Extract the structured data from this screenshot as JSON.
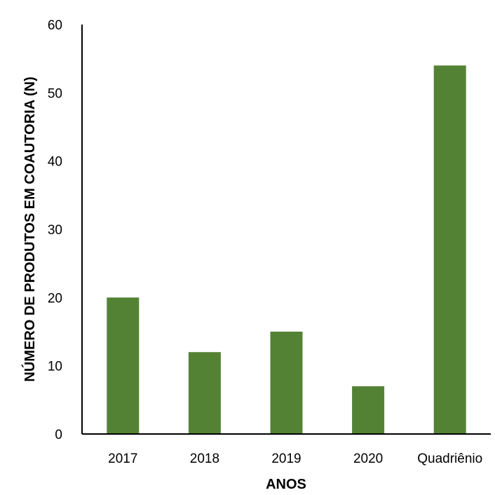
{
  "chart_data": {
    "type": "bar",
    "categories": [
      "2017",
      "2018",
      "2019",
      "2020",
      "Quadriênio"
    ],
    "values": [
      20,
      12,
      15,
      7,
      54
    ],
    "xlabel": "ANOS",
    "ylabel": "NÚMERO DE PRODUTOS EM COAUTORIA (N)",
    "ylim": [
      0,
      60
    ],
    "yticks": [
      0,
      10,
      20,
      30,
      40,
      50,
      60
    ],
    "grid": false,
    "legend": "none",
    "bar_color": "#548235",
    "axis_color": "#000000"
  }
}
